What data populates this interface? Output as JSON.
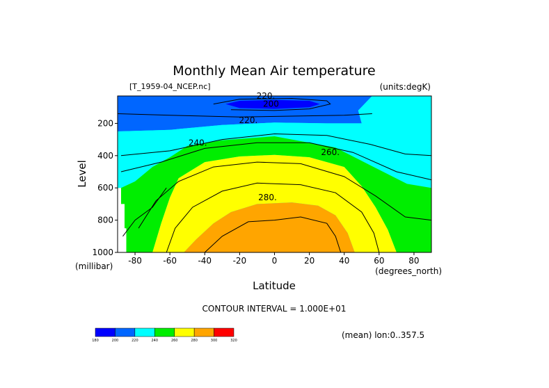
{
  "chart_data": {
    "type": "contour",
    "title": "Monthly Mean Air temperature",
    "file_label": "[T_1959-04_NCEP.nc]",
    "units_label": "(units:degK)",
    "xlabel": "Latitude",
    "x_unit": "(degrees_north)",
    "ylabel": "Level",
    "y_unit": "(millibar)",
    "xlim": [
      -90,
      90
    ],
    "ylim": [
      1000,
      30
    ],
    "y_reversed": true,
    "x_ticks": [
      -80,
      -60,
      -40,
      -20,
      0,
      20,
      40,
      60,
      80
    ],
    "y_ticks": [
      200,
      400,
      600,
      800,
      1000
    ],
    "contour_interval_text": "CONTOUR INTERVAL = 1.000E+01",
    "mean_note": "(mean) lon:0..357.5",
    "contour_labels": [
      "200",
      "220.",
      "220.",
      "240.",
      "260.",
      "280."
    ],
    "colorbar": {
      "levels": [
        180,
        200,
        220,
        240,
        260,
        280,
        300,
        320
      ],
      "colors": [
        "#0000ff",
        "#0066ff",
        "#00ffff",
        "#00ee00",
        "#ffff00",
        "#ffa500",
        "#ff0000"
      ]
    },
    "bands": [
      {
        "name": "200-220",
        "color": "#0066ff",
        "points": [
          [
            -90,
            30
          ],
          [
            56,
            30
          ],
          [
            48,
            120
          ],
          [
            50,
            200
          ],
          [
            30,
            200
          ],
          [
            0,
            195
          ],
          [
            -30,
            210
          ],
          [
            -60,
            240
          ],
          [
            -90,
            250
          ]
        ]
      },
      {
        "name": "220-240",
        "color": "#00ffff",
        "points": [
          [
            -90,
            250
          ],
          [
            -60,
            240
          ],
          [
            -30,
            210
          ],
          [
            0,
            195
          ],
          [
            30,
            200
          ],
          [
            50,
            200
          ],
          [
            48,
            120
          ],
          [
            56,
            30
          ],
          [
            90,
            30
          ],
          [
            90,
            600
          ],
          [
            76,
            575
          ],
          [
            55,
            460
          ],
          [
            35,
            350
          ],
          [
            0,
            280
          ],
          [
            -30,
            305
          ],
          [
            -50,
            340
          ],
          [
            -60,
            410
          ],
          [
            -70,
            470
          ],
          [
            -80,
            560
          ],
          [
            -88,
            600
          ],
          [
            -90,
            600
          ]
        ]
      },
      {
        "name": "240-260",
        "color": "#00ee00",
        "points": [
          [
            -90,
            600
          ],
          [
            -88,
            600
          ],
          [
            -80,
            560
          ],
          [
            -70,
            470
          ],
          [
            -60,
            410
          ],
          [
            -50,
            340
          ],
          [
            -30,
            305
          ],
          [
            0,
            280
          ],
          [
            35,
            350
          ],
          [
            55,
            460
          ],
          [
            76,
            575
          ],
          [
            90,
            600
          ],
          [
            90,
            1000
          ],
          [
            70,
            1000
          ],
          [
            65,
            860
          ],
          [
            58,
            720
          ],
          [
            50,
            590
          ],
          [
            40,
            470
          ],
          [
            20,
            410
          ],
          [
            0,
            395
          ],
          [
            -20,
            405
          ],
          [
            -40,
            440
          ],
          [
            -55,
            540
          ],
          [
            -60,
            660
          ],
          [
            -65,
            820
          ],
          [
            -70,
            1000
          ],
          [
            -90,
            1000
          ]
        ]
      },
      {
        "name": "260-280",
        "color": "#ffff00",
        "points": [
          [
            -70,
            1000
          ],
          [
            -65,
            820
          ],
          [
            -60,
            660
          ],
          [
            -55,
            540
          ],
          [
            -40,
            440
          ],
          [
            -20,
            405
          ],
          [
            0,
            395
          ],
          [
            20,
            410
          ],
          [
            40,
            470
          ],
          [
            50,
            590
          ],
          [
            58,
            720
          ],
          [
            65,
            860
          ],
          [
            70,
            1000
          ],
          [
            46,
            1000
          ],
          [
            42,
            880
          ],
          [
            35,
            770
          ],
          [
            25,
            710
          ],
          [
            10,
            690
          ],
          [
            -10,
            700
          ],
          [
            -25,
            750
          ],
          [
            -35,
            820
          ],
          [
            -45,
            920
          ],
          [
            -52,
            1000
          ]
        ]
      },
      {
        "name": "280-300",
        "color": "#ffa500",
        "points": [
          [
            -52,
            1000
          ],
          [
            -45,
            920
          ],
          [
            -35,
            820
          ],
          [
            -25,
            750
          ],
          [
            -10,
            700
          ],
          [
            10,
            690
          ],
          [
            25,
            710
          ],
          [
            35,
            770
          ],
          [
            42,
            880
          ],
          [
            46,
            1000
          ]
        ]
      },
      {
        "name": "180-200",
        "color": "#0000ff",
        "points": [
          [
            -28,
            80
          ],
          [
            -20,
            60
          ],
          [
            0,
            55
          ],
          [
            20,
            60
          ],
          [
            26,
            80
          ],
          [
            20,
            100
          ],
          [
            0,
            110
          ],
          [
            -20,
            105
          ]
        ]
      }
    ],
    "missing_regions": [
      [
        [
          -90,
          600
        ],
        [
          -88,
          600
        ],
        [
          -88,
          700
        ],
        [
          -86,
          700
        ],
        [
          -86,
          850
        ],
        [
          -85,
          850
        ],
        [
          -85,
          1000
        ],
        [
          -90,
          1000
        ]
      ]
    ],
    "contour_lines": [
      [
        [
          -88,
          400
        ],
        [
          -60,
          370
        ],
        [
          -30,
          300
        ],
        [
          0,
          265
        ],
        [
          30,
          275
        ],
        [
          55,
          330
        ],
        [
          75,
          390
        ],
        [
          90,
          400
        ]
      ],
      [
        [
          -88,
          500
        ],
        [
          -65,
          440
        ],
        [
          -40,
          355
        ],
        [
          -10,
          320
        ],
        [
          20,
          320
        ],
        [
          45,
          380
        ],
        [
          70,
          500
        ],
        [
          90,
          550
        ]
      ],
      [
        [
          -78,
          850
        ],
        [
          -68,
          680
        ],
        [
          -55,
          560
        ],
        [
          -35,
          470
        ],
        [
          -10,
          440
        ],
        [
          15,
          450
        ],
        [
          40,
          530
        ],
        [
          58,
          650
        ],
        [
          75,
          780
        ],
        [
          90,
          800
        ]
      ],
      [
        [
          -87,
          900
        ],
        [
          -80,
          800
        ],
        [
          -70,
          720
        ],
        [
          -62,
          600
        ]
      ],
      [
        [
          -62,
          1000
        ],
        [
          -57,
          850
        ],
        [
          -47,
          720
        ],
        [
          -30,
          620
        ],
        [
          -10,
          570
        ],
        [
          15,
          580
        ],
        [
          35,
          630
        ],
        [
          50,
          750
        ],
        [
          57,
          880
        ],
        [
          60,
          1000
        ]
      ],
      [
        [
          -40,
          1000
        ],
        [
          -30,
          900
        ],
        [
          -15,
          810
        ],
        [
          0,
          800
        ],
        [
          15,
          780
        ],
        [
          30,
          820
        ],
        [
          35,
          900
        ],
        [
          38,
          1000
        ]
      ],
      [
        [
          -35,
          80
        ],
        [
          -20,
          50
        ],
        [
          10,
          45
        ],
        [
          30,
          60
        ],
        [
          32,
          80
        ],
        [
          20,
          110
        ],
        [
          0,
          120
        ],
        [
          -25,
          115
        ]
      ],
      [
        [
          -90,
          140
        ],
        [
          -60,
          150
        ],
        [
          -20,
          160
        ],
        [
          10,
          155
        ],
        [
          40,
          150
        ],
        [
          56,
          140
        ]
      ]
    ],
    "contour_label_positions": [
      [
        -2,
        80
      ],
      [
        -5,
        30
      ],
      [
        -15,
        180
      ],
      [
        -44,
        320
      ],
      [
        32,
        380
      ],
      [
        -4,
        660
      ]
    ]
  }
}
